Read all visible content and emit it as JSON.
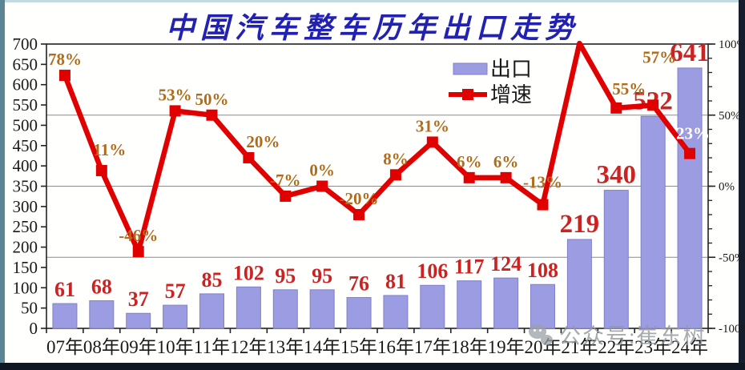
{
  "page": {
    "title": "中国汽车整车历年出口走势",
    "watermark_text": "公众号:崔东树"
  },
  "colors": {
    "title": "#2222b2",
    "bar_fill": "#9c9ce2",
    "bar_stroke": "#8080c8",
    "line": "#e10000",
    "growth_label": "#b06c1a",
    "bar_value_label": "#cc2222",
    "axis_text": "#1a1a1a",
    "gridline": "#8c8c8c",
    "frame": "#222222",
    "white_label": "#ffffff"
  },
  "chart_data": {
    "type": "bar",
    "subtype": "bar+line combo, dual axis",
    "title": "中国汽车整车历年出口走势",
    "categories": [
      "07年",
      "08年",
      "09年",
      "10年",
      "11年",
      "12年",
      "13年",
      "14年",
      "15年",
      "16年",
      "17年",
      "18年",
      "19年",
      "20年",
      "21年",
      "22年",
      "23年",
      "24年"
    ],
    "series": [
      {
        "name": "出口",
        "type": "bar",
        "axis": "left",
        "values": [
          61,
          68,
          37,
          57,
          85,
          102,
          95,
          95,
          76,
          81,
          106,
          117,
          124,
          108,
          219,
          340,
          522,
          641
        ],
        "value_labels": [
          "61",
          "68",
          "37",
          "57",
          "85",
          "102",
          "95",
          "95",
          "76",
          "81",
          "106",
          "117",
          "124",
          "108",
          "219",
          "340",
          "522",
          "641"
        ]
      },
      {
        "name": "增速",
        "type": "line",
        "axis": "right",
        "values_pct": [
          78,
          11,
          -46,
          53,
          50,
          20,
          -7,
          0,
          -20,
          8,
          31,
          6,
          6,
          -13,
          100.5,
          55,
          57,
          23
        ],
        "point_labels": [
          "78%",
          "11%",
          "-46%",
          "53%",
          "50%",
          "20%",
          "-7%",
          "0%",
          "-20%",
          "8%",
          "31%",
          "6%",
          "6%",
          "-13%",
          "",
          "55%",
          "57%",
          "23%"
        ],
        "label_overrides": {
          "1": {
            "dx": 10,
            "dy": -6
          },
          "5": {
            "dx": 18,
            "dy": 0
          },
          "13": {
            "dx": 0,
            "dy": -8
          },
          "15": {
            "dx": 16,
            "dy": -4
          },
          "16": {
            "dx": 8,
            "dy": -40
          },
          "17": {
            "dx": 4,
            "dy": -5,
            "color": "#ffffff"
          }
        }
      }
    ],
    "left_axis": {
      "min": 0,
      "max": 700,
      "step": 50,
      "tick_labels": [
        "0",
        "50",
        "100",
        "150",
        "200",
        "250",
        "300",
        "350",
        "400",
        "450",
        "500",
        "550",
        "600",
        "650",
        "700"
      ]
    },
    "right_axis": {
      "min": -100,
      "max": 100,
      "major_step": 50,
      "minor_step": 10,
      "tick_labels": [
        "100%",
        "50%",
        "0%",
        "-50%",
        "-100%"
      ],
      "tick_values": [
        100,
        50,
        0,
        -50,
        -100
      ]
    },
    "gridlines_right_pct": [
      50,
      0,
      -50
    ],
    "legend": {
      "position": "top-right-inside",
      "items": [
        {
          "label": "出口",
          "swatch": "bar"
        },
        {
          "label": "增速",
          "swatch": "line"
        }
      ]
    }
  }
}
